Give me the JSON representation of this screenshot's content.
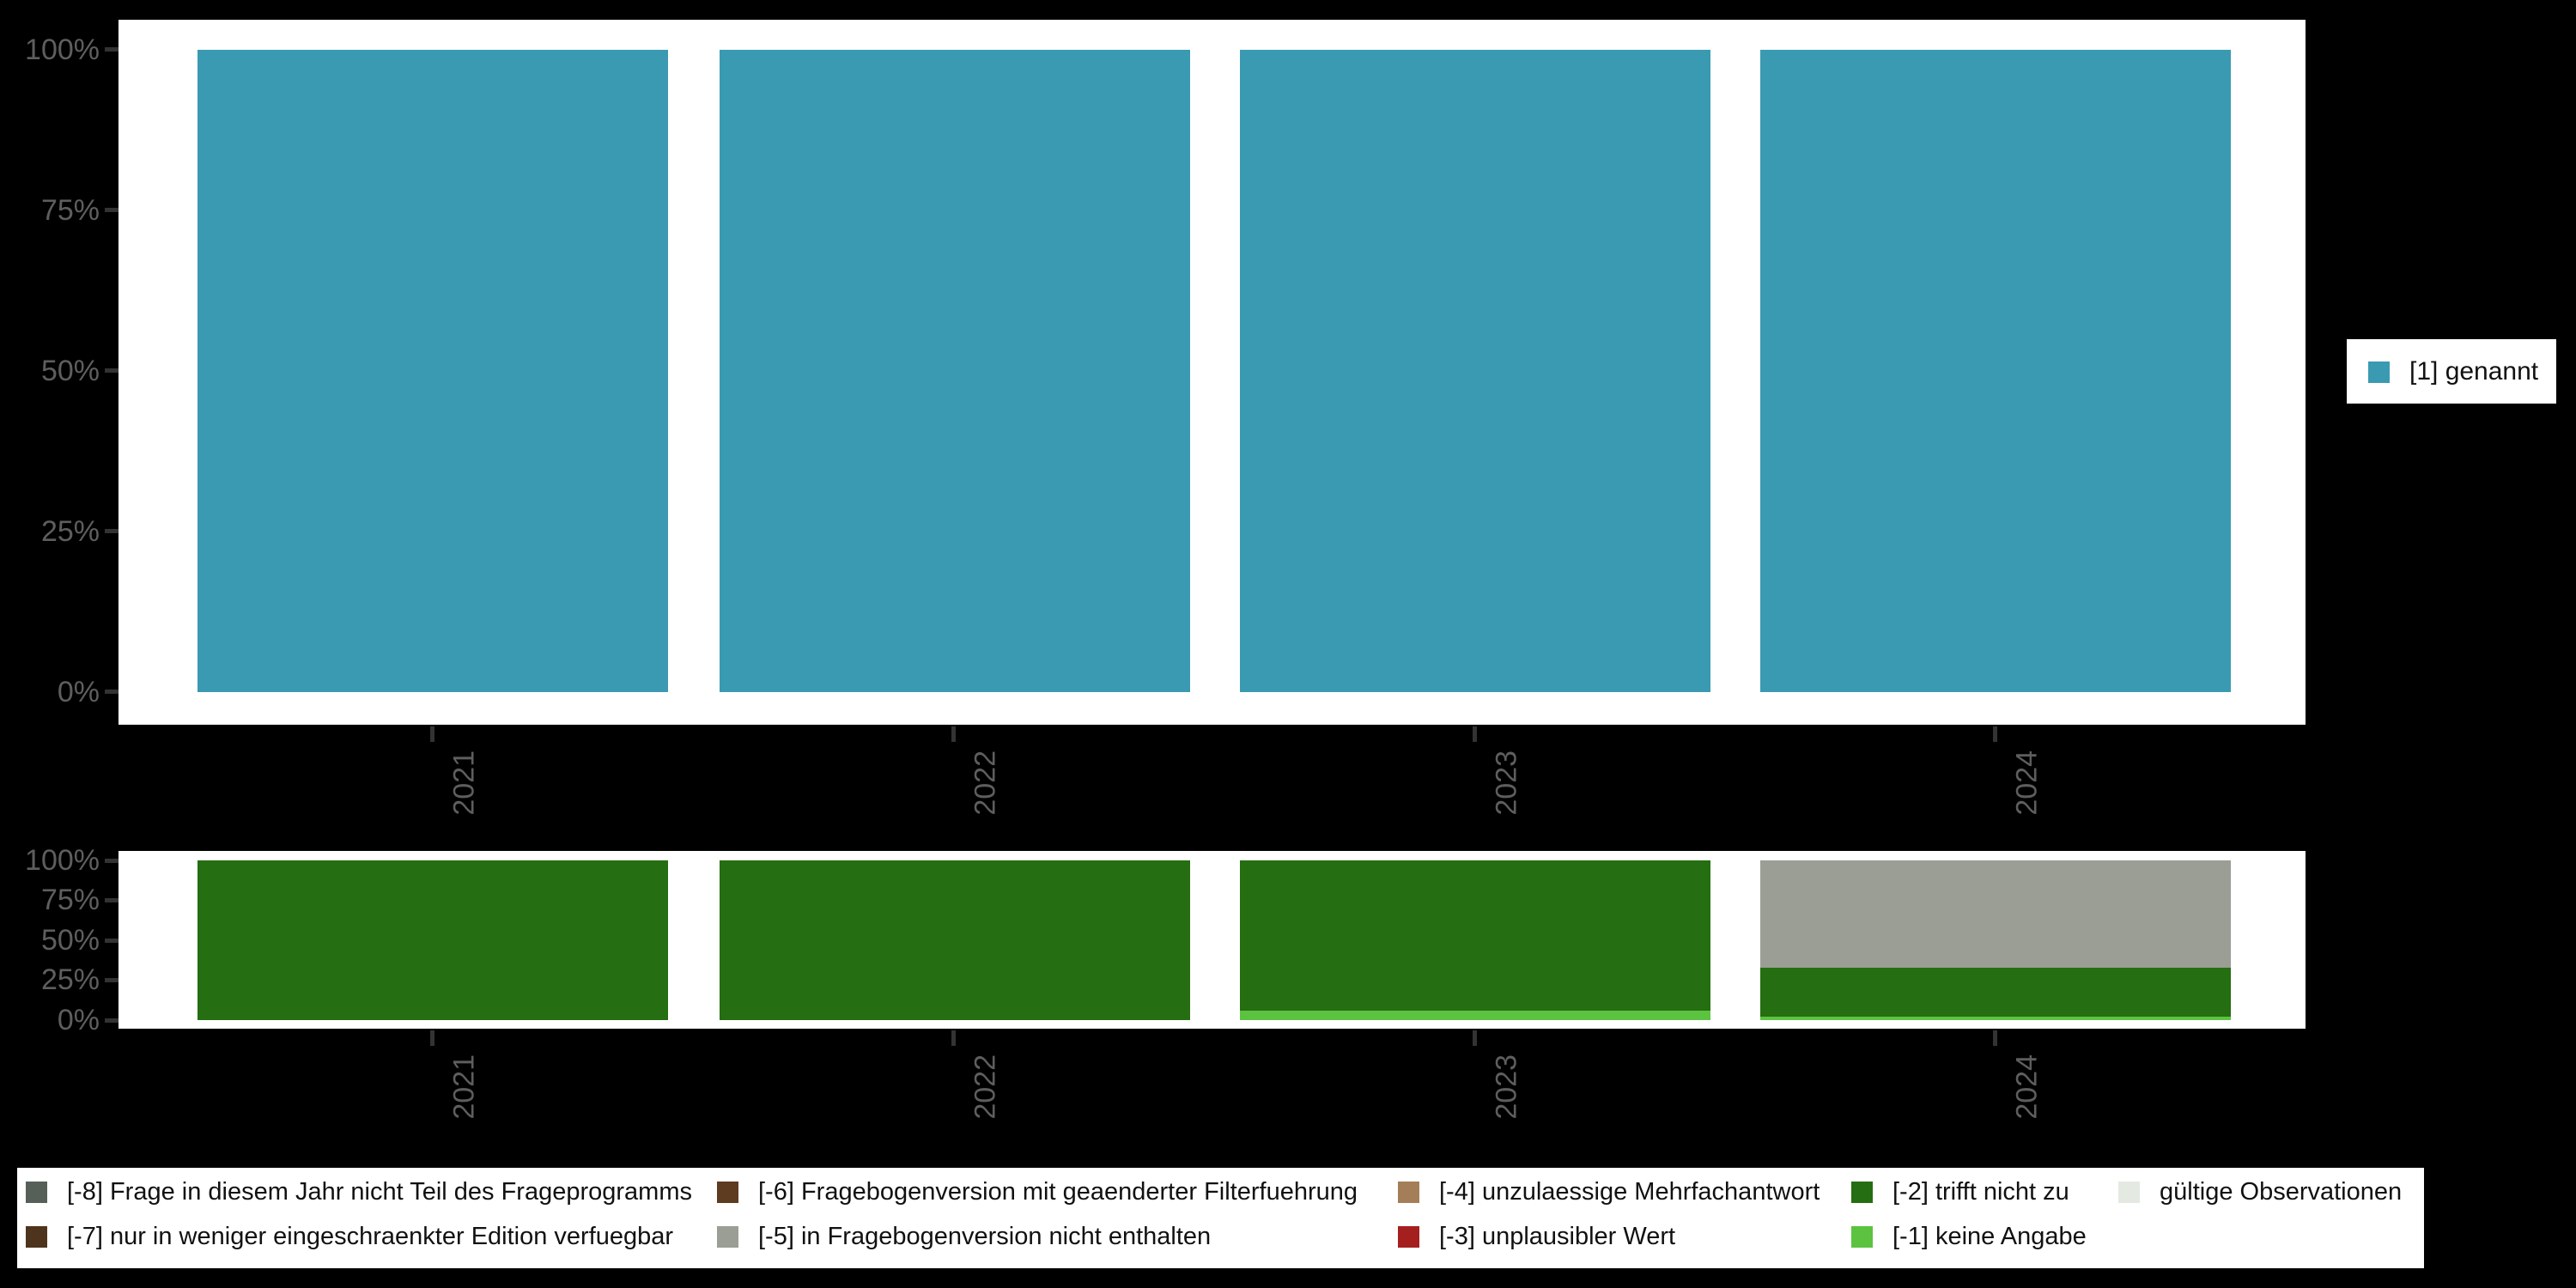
{
  "colors": {
    "background": "#000000",
    "panel": "#ffffff",
    "axis_text": "#5e5e5e",
    "tick_mark": "#333333",
    "teal": "#3a9ab1",
    "dark_green": "#256e11",
    "light_green": "#5cc341",
    "gray_missing": "#9a9e95"
  },
  "chart_data": [
    {
      "id": "top-panel",
      "type": "bar",
      "stacked": true,
      "percent": true,
      "title": "",
      "xlabel": "",
      "ylabel": "",
      "categories": [
        "2021",
        "2022",
        "2023",
        "2024"
      ],
      "yticks": [
        "100%",
        "75%",
        "50%",
        "25%",
        "0%"
      ],
      "ylim": [
        0,
        100
      ],
      "grid": false,
      "legend_position": "right",
      "series": [
        {
          "name": "[1] genannt",
          "color": "#3a9ab1",
          "values": [
            100,
            100,
            100,
            100
          ]
        }
      ],
      "bars": [
        [
          {
            "name": "[1] genannt",
            "color": "#3a9ab1",
            "pct": 100
          }
        ],
        [
          {
            "name": "[1] genannt",
            "color": "#3a9ab1",
            "pct": 100
          }
        ],
        [
          {
            "name": "[1] genannt",
            "color": "#3a9ab1",
            "pct": 100
          }
        ],
        [
          {
            "name": "[1] genannt",
            "color": "#3a9ab1",
            "pct": 100
          }
        ]
      ]
    },
    {
      "id": "bottom-panel",
      "type": "bar",
      "stacked": true,
      "percent": true,
      "title": "",
      "xlabel": "",
      "ylabel": "",
      "categories": [
        "2021",
        "2022",
        "2023",
        "2024"
      ],
      "yticks": [
        "100%",
        "75%",
        "50%",
        "25%",
        "0%"
      ],
      "ylim": [
        0,
        100
      ],
      "grid": false,
      "legend_position": "bottom",
      "series": [
        {
          "name": "[-5] in Fragebogenversion nicht enthalten",
          "color": "#9a9e95",
          "values": [
            0,
            0,
            0,
            67
          ]
        },
        {
          "name": "[-2] trifft nicht zu",
          "color": "#256e11",
          "values": [
            100,
            100,
            94,
            31
          ]
        },
        {
          "name": "[-1] keine Angabe",
          "color": "#5cc341",
          "values": [
            0,
            0,
            6,
            2
          ]
        }
      ],
      "bars": [
        [
          {
            "name": "[-2] trifft nicht zu",
            "color": "#256e11",
            "pct": 100
          }
        ],
        [
          {
            "name": "[-2] trifft nicht zu",
            "color": "#256e11",
            "pct": 100
          }
        ],
        [
          {
            "name": "[-2] trifft nicht zu",
            "color": "#256e11",
            "pct": 94
          },
          {
            "name": "[-1] keine Angabe",
            "color": "#5cc341",
            "pct": 6
          }
        ],
        [
          {
            "name": "[-5] in Fragebogenversion nicht enthalten",
            "color": "#9a9e95",
            "pct": 67
          },
          {
            "name": "[-2] trifft nicht zu",
            "color": "#256e11",
            "pct": 31
          },
          {
            "name": "[-1] keine Angabe",
            "color": "#5cc341",
            "pct": 2
          }
        ]
      ]
    }
  ],
  "legend_right": {
    "items": [
      {
        "label": "[1] genannt",
        "color": "#3a9ab1"
      }
    ]
  },
  "legend_bottom": {
    "items": [
      {
        "label": "[-8] Frage in diesem Jahr nicht Teil des Frageprogramms",
        "color": "#566058"
      },
      {
        "label": "[-7] nur in weniger eingeschraenkter Edition verfuegbar",
        "color": "#4e341d"
      },
      {
        "label": "[-6] Fragebogenversion mit geaenderter Filterfuehrung",
        "color": "#5d3c1f"
      },
      {
        "label": "[-5] in Fragebogenversion nicht enthalten",
        "color": "#9a9e95"
      },
      {
        "label": "[-4] unzulaessige Mehrfachantwort",
        "color": "#a37e58"
      },
      {
        "label": "[-3] unplausibler Wert",
        "color": "#a51f1f"
      },
      {
        "label": "[-2] trifft nicht zu",
        "color": "#256e11"
      },
      {
        "label": "[-1] keine Angabe",
        "color": "#5cc341"
      },
      {
        "label": "gültige Observationen",
        "color": "#e4e9e2"
      }
    ]
  }
}
